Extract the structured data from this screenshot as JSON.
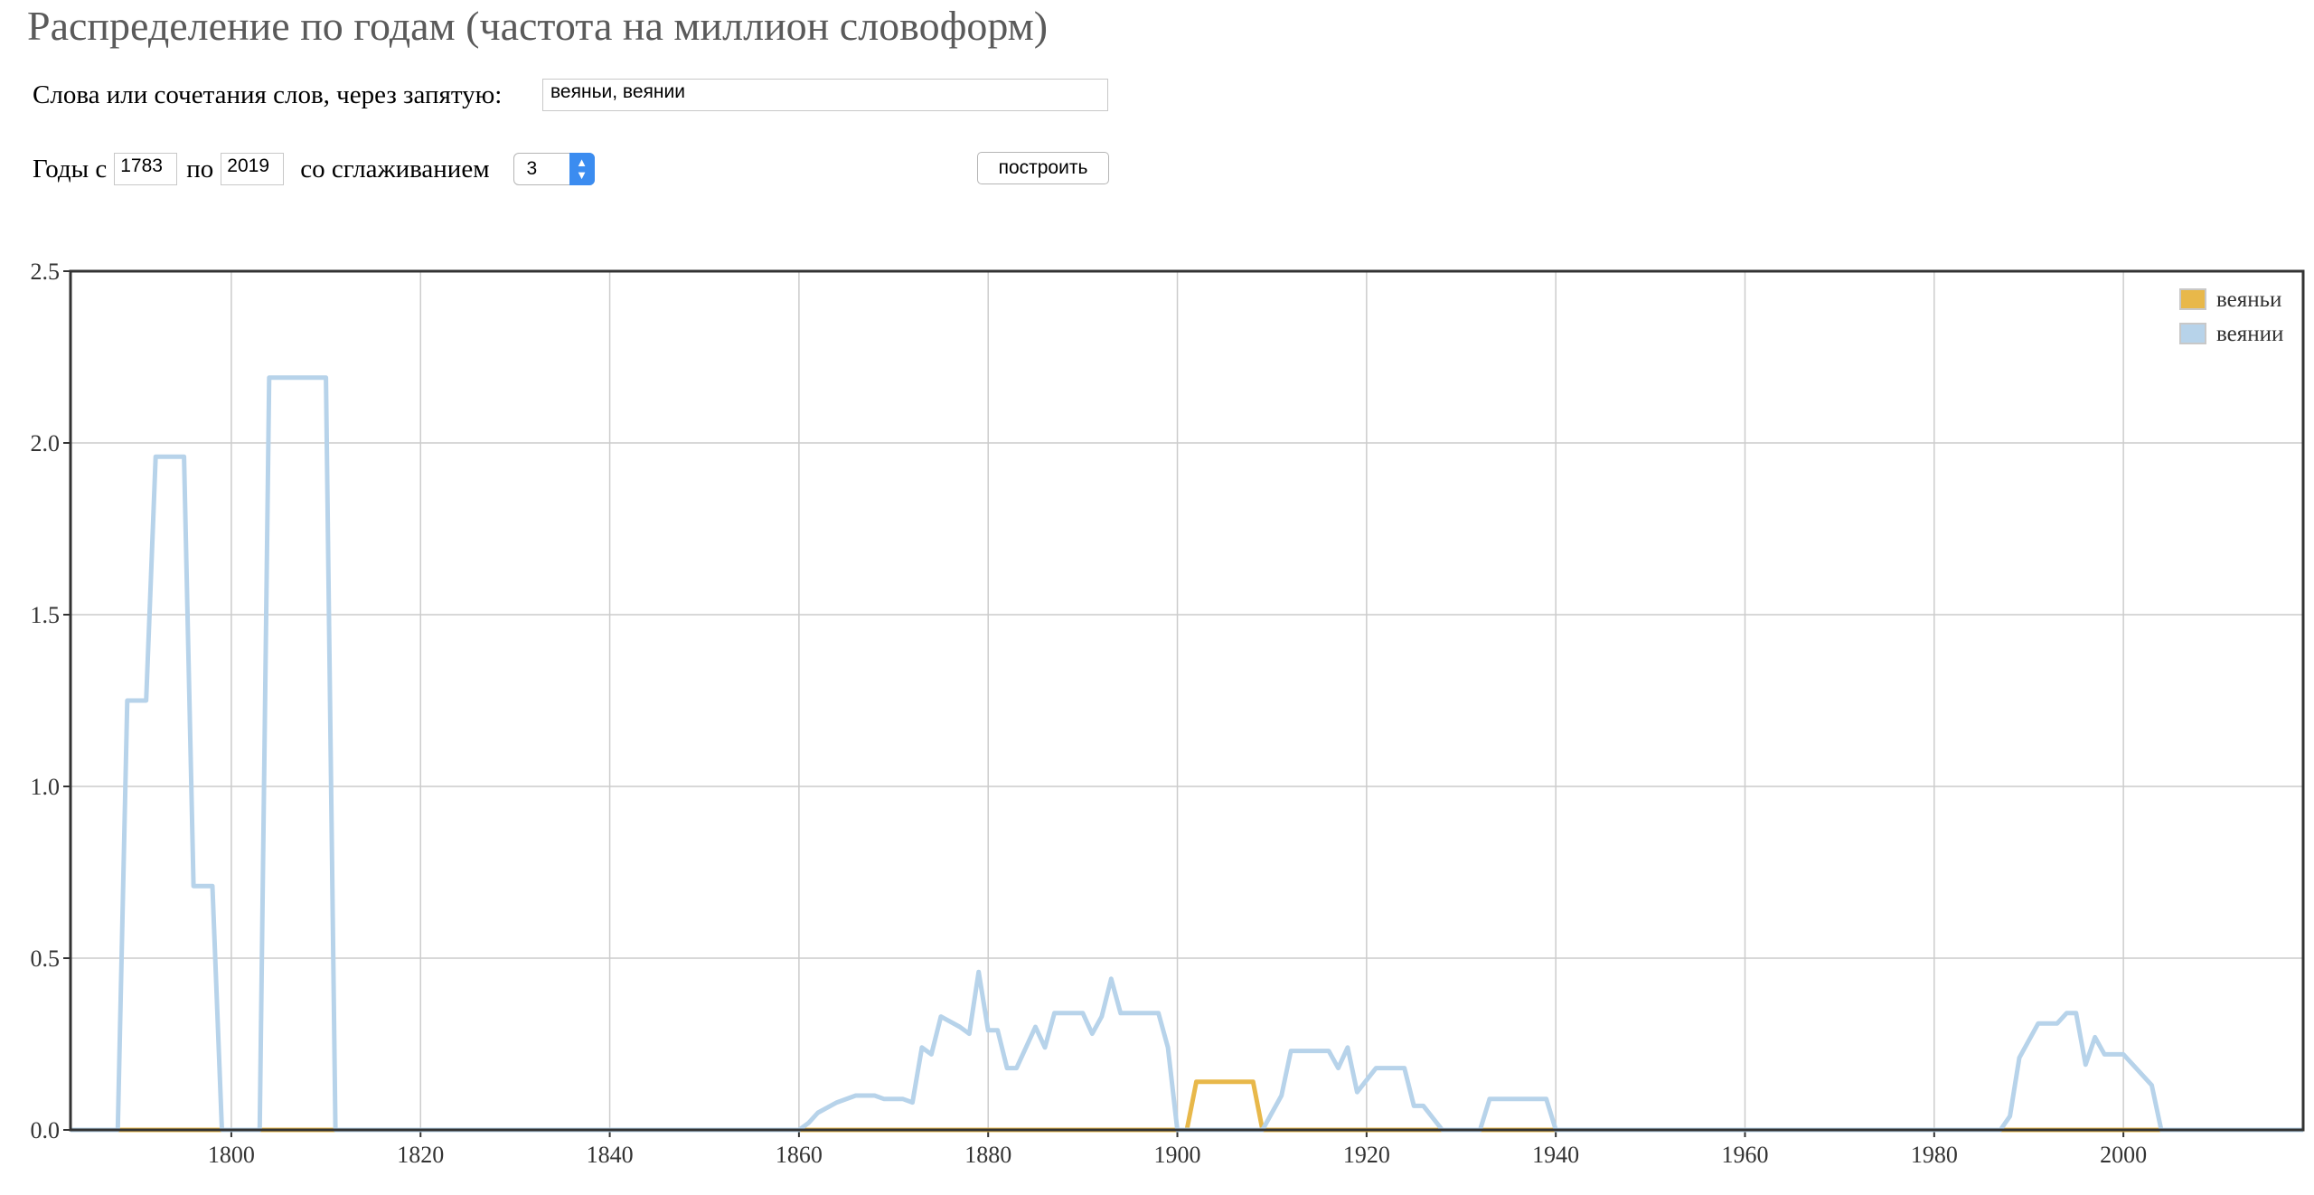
{
  "header": {
    "title": "Распределение по годам (частота на миллион словоформ)"
  },
  "form": {
    "words_label": "Слова или сочетания слов, через запятую:",
    "words_value": "веяньи, веянии",
    "years_from_label": "Годы с",
    "year_from": "1783",
    "years_to_label": "по",
    "year_to": "2019",
    "smoothing_label": "со сглаживанием",
    "smoothing_value": "3",
    "build_button": "построить"
  },
  "chart_data": {
    "type": "line",
    "title": "",
    "xlabel": "",
    "ylabel": "",
    "xlim": [
      1783,
      2019
    ],
    "ylim": [
      0,
      2.5
    ],
    "x_ticks": [
      "1800",
      "1820",
      "1840",
      "1860",
      "1880",
      "1900",
      "1920",
      "1940",
      "1960",
      "1980",
      "2000"
    ],
    "y_ticks": [
      "0.0",
      "0.5",
      "1.0",
      "1.5",
      "2.0",
      "2.5"
    ],
    "grid": true,
    "legend_position": "top-right",
    "series": [
      {
        "name": "веяньи",
        "color": "#e8b84a",
        "points": [
          [
            1783,
            0
          ],
          [
            1901,
            0
          ],
          [
            1902,
            0.14
          ],
          [
            1908,
            0.14
          ],
          [
            1909,
            0
          ],
          [
            2019,
            0
          ]
        ]
      },
      {
        "name": "веянии",
        "color": "#b7d3ea",
        "points": [
          [
            1783,
            0
          ],
          [
            1788,
            0
          ],
          [
            1789,
            1.25
          ],
          [
            1791,
            1.25
          ],
          [
            1792,
            1.96
          ],
          [
            1795,
            1.96
          ],
          [
            1796,
            0.71
          ],
          [
            1798,
            0.71
          ],
          [
            1799,
            0
          ],
          [
            1803,
            0
          ],
          [
            1804,
            2.19
          ],
          [
            1810,
            2.19
          ],
          [
            1811,
            0
          ],
          [
            1860,
            0
          ],
          [
            1861,
            0.02
          ],
          [
            1862,
            0.05
          ],
          [
            1864,
            0.08
          ],
          [
            1866,
            0.1
          ],
          [
            1868,
            0.1
          ],
          [
            1869,
            0.09
          ],
          [
            1871,
            0.09
          ],
          [
            1872,
            0.08
          ],
          [
            1873,
            0.24
          ],
          [
            1874,
            0.22
          ],
          [
            1875,
            0.33
          ],
          [
            1877,
            0.3
          ],
          [
            1878,
            0.28
          ],
          [
            1879,
            0.46
          ],
          [
            1880,
            0.29
          ],
          [
            1881,
            0.29
          ],
          [
            1882,
            0.18
          ],
          [
            1883,
            0.18
          ],
          [
            1885,
            0.3
          ],
          [
            1886,
            0.24
          ],
          [
            1887,
            0.34
          ],
          [
            1890,
            0.34
          ],
          [
            1891,
            0.28
          ],
          [
            1892,
            0.33
          ],
          [
            1893,
            0.44
          ],
          [
            1894,
            0.34
          ],
          [
            1898,
            0.34
          ],
          [
            1899,
            0.24
          ],
          [
            1900,
            0
          ],
          [
            1909,
            0
          ],
          [
            1911,
            0.1
          ],
          [
            1912,
            0.23
          ],
          [
            1916,
            0.23
          ],
          [
            1917,
            0.18
          ],
          [
            1918,
            0.24
          ],
          [
            1919,
            0.11
          ],
          [
            1921,
            0.18
          ],
          [
            1924,
            0.18
          ],
          [
            1925,
            0.07
          ],
          [
            1926,
            0.07
          ],
          [
            1928,
            0
          ],
          [
            1932,
            0
          ],
          [
            1933,
            0.09
          ],
          [
            1939,
            0.09
          ],
          [
            1940,
            0
          ],
          [
            1987,
            0
          ],
          [
            1988,
            0.04
          ],
          [
            1989,
            0.21
          ],
          [
            1991,
            0.31
          ],
          [
            1993,
            0.31
          ],
          [
            1994,
            0.34
          ],
          [
            1995,
            0.34
          ],
          [
            1996,
            0.19
          ],
          [
            1997,
            0.27
          ],
          [
            1998,
            0.22
          ],
          [
            2000,
            0.22
          ],
          [
            2001,
            0.19
          ],
          [
            2003,
            0.13
          ],
          [
            2004,
            0
          ],
          [
            2019,
            0
          ]
        ]
      }
    ]
  }
}
